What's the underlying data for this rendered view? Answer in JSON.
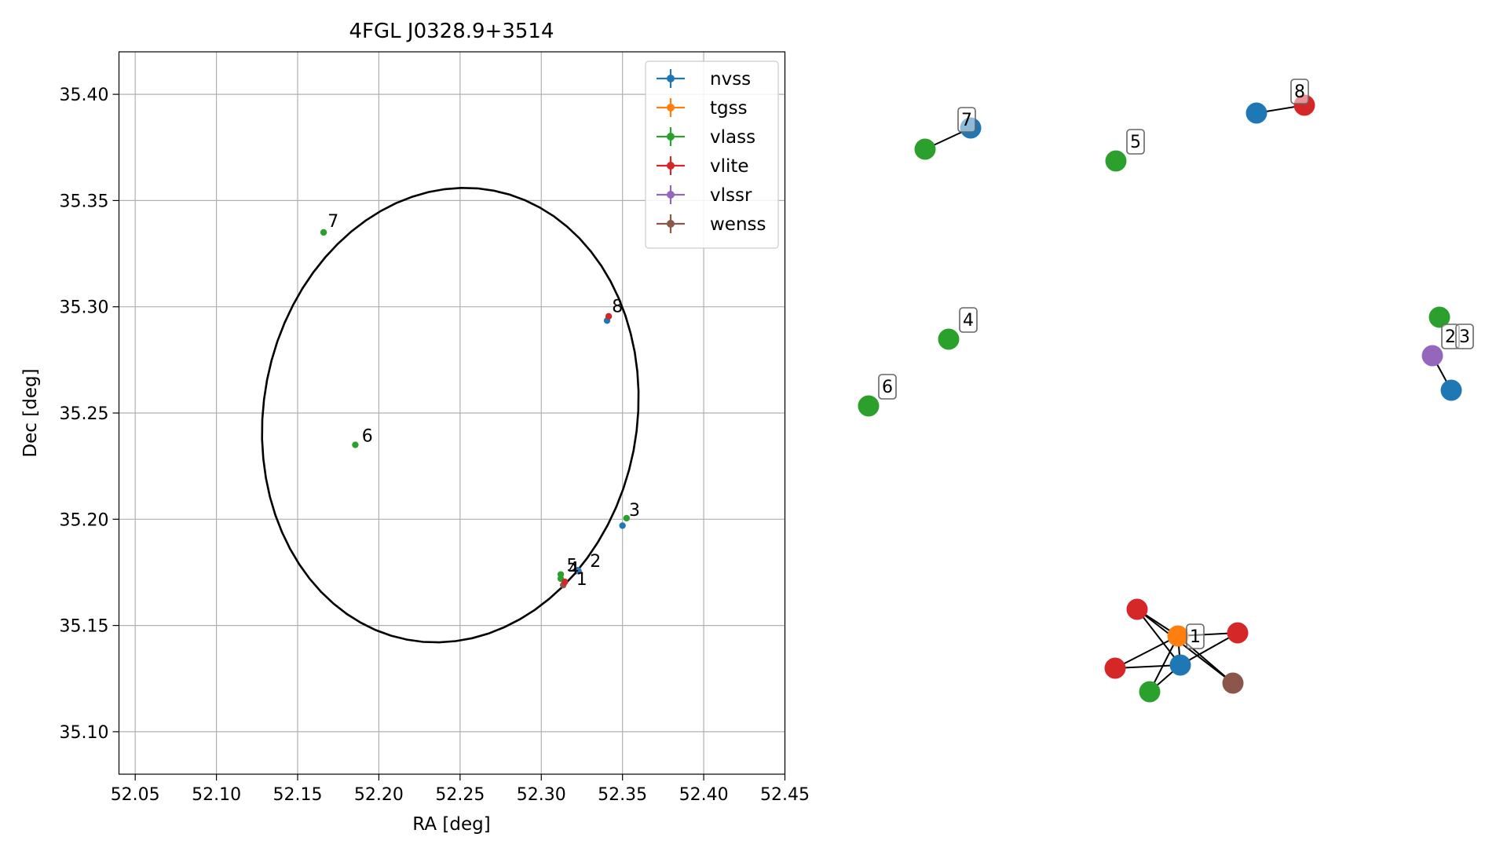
{
  "chart_data": [
    {
      "type": "scatter",
      "title": "4FGL J0328.9+3514",
      "xlabel": "RA [deg]",
      "ylabel": "Dec [deg]",
      "xlim": [
        52.04,
        52.45
      ],
      "ylim": [
        35.08,
        35.42
      ],
      "xticks": [
        "52.05",
        "52.10",
        "52.15",
        "52.20",
        "52.25",
        "52.30",
        "52.35",
        "52.40",
        "52.45"
      ],
      "yticks": [
        "35.10",
        "35.15",
        "35.20",
        "35.25",
        "35.30",
        "35.35",
        "35.40"
      ],
      "grid": true,
      "legend": {
        "placement": "top-right",
        "entries": [
          {
            "name": "nvss",
            "color": "#1f77b4"
          },
          {
            "name": "tgss",
            "color": "#ff7f0e"
          },
          {
            "name": "vlass",
            "color": "#2ca02c"
          },
          {
            "name": "vlite",
            "color": "#d62728"
          },
          {
            "name": "vlssr",
            "color": "#9467bd"
          },
          {
            "name": "wenss",
            "color": "#8c564b"
          }
        ]
      },
      "ellipse": {
        "center": [
          52.244,
          35.249
        ],
        "semi_major_deg": 0.108,
        "semi_minor_deg": 0.0935,
        "orientation_deg": 74,
        "color": "#000000"
      },
      "points": [
        {
          "survey": "nvss",
          "ra": 52.3405,
          "dec": 35.2935
        },
        {
          "survey": "vlite",
          "ra": 52.3415,
          "dec": 35.2955
        },
        {
          "survey": "nvss",
          "ra": 52.35,
          "dec": 35.197
        },
        {
          "survey": "vlass",
          "ra": 52.3525,
          "dec": 35.2005
        },
        {
          "survey": "vlass",
          "ra": 52.166,
          "dec": 35.335
        },
        {
          "survey": "vlass",
          "ra": 52.1855,
          "dec": 35.235
        },
        {
          "survey": "vlass",
          "ra": 52.312,
          "dec": 35.174
        },
        {
          "survey": "vlass",
          "ra": 52.312,
          "dec": 35.172
        },
        {
          "survey": "vlssr",
          "ra": 52.323,
          "dec": 35.1755
        },
        {
          "survey": "nvss",
          "ra": 52.3225,
          "dec": 35.176
        },
        {
          "survey": "wenss",
          "ra": 52.3135,
          "dec": 35.169
        },
        {
          "survey": "vlite",
          "ra": 52.3145,
          "dec": 35.1705
        }
      ],
      "labels": [
        {
          "text": "7",
          "ra": 52.1685,
          "dec": 35.3375
        },
        {
          "text": "6",
          "ra": 52.1895,
          "dec": 35.2365
        },
        {
          "text": "8",
          "ra": 52.3435,
          "dec": 35.2975
        },
        {
          "text": "3",
          "ra": 52.354,
          "dec": 35.2015
        },
        {
          "text": "5",
          "ra": 52.3155,
          "dec": 35.1755
        },
        {
          "text": "4",
          "ra": 52.3165,
          "dec": 35.174
        },
        {
          "text": "1",
          "ra": 52.3215,
          "dec": 35.169
        },
        {
          "text": "2",
          "ra": 52.33,
          "dec": 35.1775
        }
      ]
    },
    {
      "type": "network",
      "nodes": [
        {
          "id": "n7a",
          "survey": "vlass"
        },
        {
          "id": "n7b",
          "survey": "nvss",
          "label": "7"
        },
        {
          "id": "n5",
          "survey": "vlass",
          "label": "5"
        },
        {
          "id": "n8a",
          "survey": "nvss"
        },
        {
          "id": "n8b",
          "survey": "vlite",
          "label": "8"
        },
        {
          "id": "n4",
          "survey": "vlass",
          "label": "4"
        },
        {
          "id": "n6",
          "survey": "vlass",
          "label": "6"
        },
        {
          "id": "n23a",
          "survey": "vlass"
        },
        {
          "id": "n23b",
          "survey": "vlssr",
          "label": "2"
        },
        {
          "id": "n23c",
          "survey": "nvss",
          "label": "3"
        },
        {
          "id": "c1",
          "survey": "vlite"
        },
        {
          "id": "c2",
          "survey": "tgss",
          "label": "1"
        },
        {
          "id": "c3",
          "survey": "vlite"
        },
        {
          "id": "c4",
          "survey": "vlite"
        },
        {
          "id": "c5",
          "survey": "nvss"
        },
        {
          "id": "c6",
          "survey": "vlass"
        },
        {
          "id": "c7",
          "survey": "wenss"
        }
      ],
      "edges": [
        [
          "n7a",
          "n7b"
        ],
        [
          "n8a",
          "n8b"
        ],
        [
          "n23b",
          "n23c"
        ],
        [
          "c1",
          "c2"
        ],
        [
          "c1",
          "c5"
        ],
        [
          "c1",
          "c7"
        ],
        [
          "c2",
          "c3"
        ],
        [
          "c2",
          "c4"
        ],
        [
          "c2",
          "c5"
        ],
        [
          "c2",
          "c6"
        ],
        [
          "c2",
          "c7"
        ],
        [
          "c3",
          "c5"
        ],
        [
          "c4",
          "c5"
        ],
        [
          "c5",
          "c6"
        ]
      ]
    }
  ]
}
